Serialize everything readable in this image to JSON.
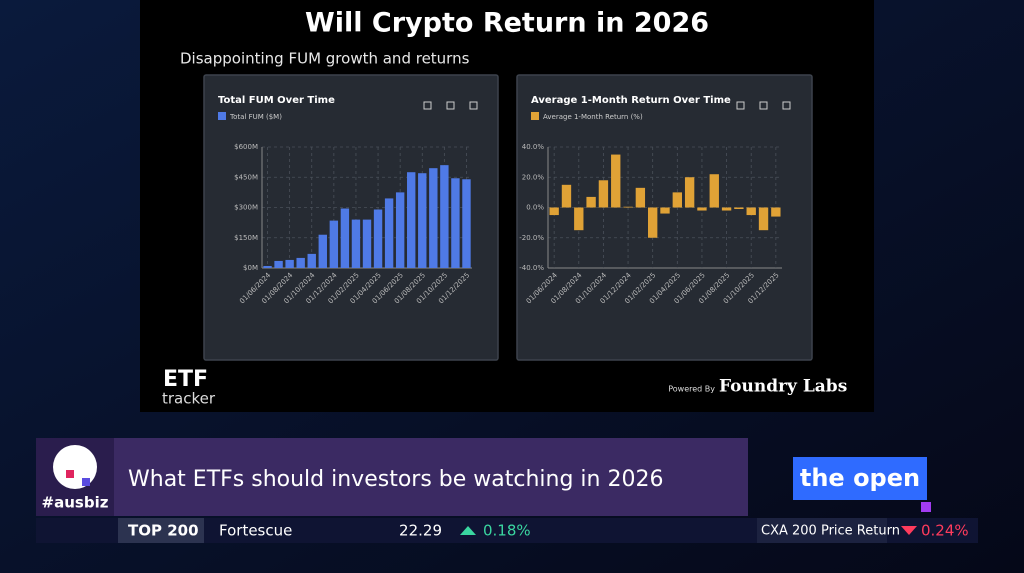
{
  "slide": {
    "title": "Will Crypto Return in 2026",
    "subtitle": "Disappointing FUM growth and returns",
    "brand_top": "ETF",
    "brand_bottom": "tracker",
    "powered_by": "Powered By",
    "sponsor": "Foundry Labs"
  },
  "banner": {
    "logo": "#ausbiz",
    "headline": "What ETFs should investors be watching in 2026",
    "show": "the open"
  },
  "ticker": {
    "index": "TOP 200",
    "stock": "Fortescue",
    "price": "22.29",
    "change": "0.18%",
    "index2": "CXA 200 Price Return",
    "change2": "0.24%"
  },
  "chart_data": [
    {
      "type": "bar",
      "title": "Total FUM Over Time",
      "categories": [
        "01/06/2024",
        null,
        "01/08/2024",
        null,
        "01/10/2024",
        null,
        "01/12/2024",
        null,
        "01/02/2025",
        null,
        "01/04/2025",
        null,
        "01/06/2025",
        null,
        "01/08/2025",
        null,
        "01/10/2025",
        null,
        "01/12/2025"
      ],
      "series": [
        {
          "name": "Total FUM ($M)",
          "color": "#4f7ae6",
          "values": [
            10,
            35,
            40,
            50,
            70,
            165,
            235,
            295,
            240,
            240,
            290,
            345,
            375,
            475,
            470,
            495,
            510,
            445,
            440
          ]
        }
      ],
      "ylim": [
        0,
        600
      ],
      "yticks": [
        {
          "value": 0,
          "label": "$0M"
        },
        {
          "value": 150,
          "label": "$150M"
        },
        {
          "value": 300,
          "label": "$300M"
        },
        {
          "value": 450,
          "label": "$450M"
        },
        {
          "value": 600,
          "label": "$600M"
        }
      ],
      "grid": true,
      "legend": "top-left"
    },
    {
      "type": "bar",
      "title": "Average 1-Month Return Over Time",
      "categories": [
        "01/06/2024",
        null,
        "01/08/2024",
        null,
        "01/10/2024",
        null,
        "01/12/2024",
        null,
        "01/02/2025",
        null,
        "01/04/2025",
        null,
        "01/06/2025",
        null,
        "01/08/2025",
        null,
        "01/10/2025",
        null,
        "01/12/2025"
      ],
      "series": [
        {
          "name": "Average 1-Month Return (%)",
          "color": "#e0a236",
          "values": [
            -5,
            15,
            -15,
            7,
            18,
            35,
            0.5,
            13,
            -20,
            -4,
            10,
            20,
            -2,
            22,
            -2,
            -1,
            -5,
            -15,
            -6
          ]
        }
      ],
      "ylim": [
        -40,
        40
      ],
      "yticks": [
        {
          "value": -40,
          "label": "-40.0%"
        },
        {
          "value": -20,
          "label": "-20.0%"
        },
        {
          "value": 0,
          "label": "0.0%"
        },
        {
          "value": 20,
          "label": "20.0%"
        },
        {
          "value": 40,
          "label": "40.0%"
        }
      ],
      "grid": true,
      "legend": "top-left"
    }
  ]
}
